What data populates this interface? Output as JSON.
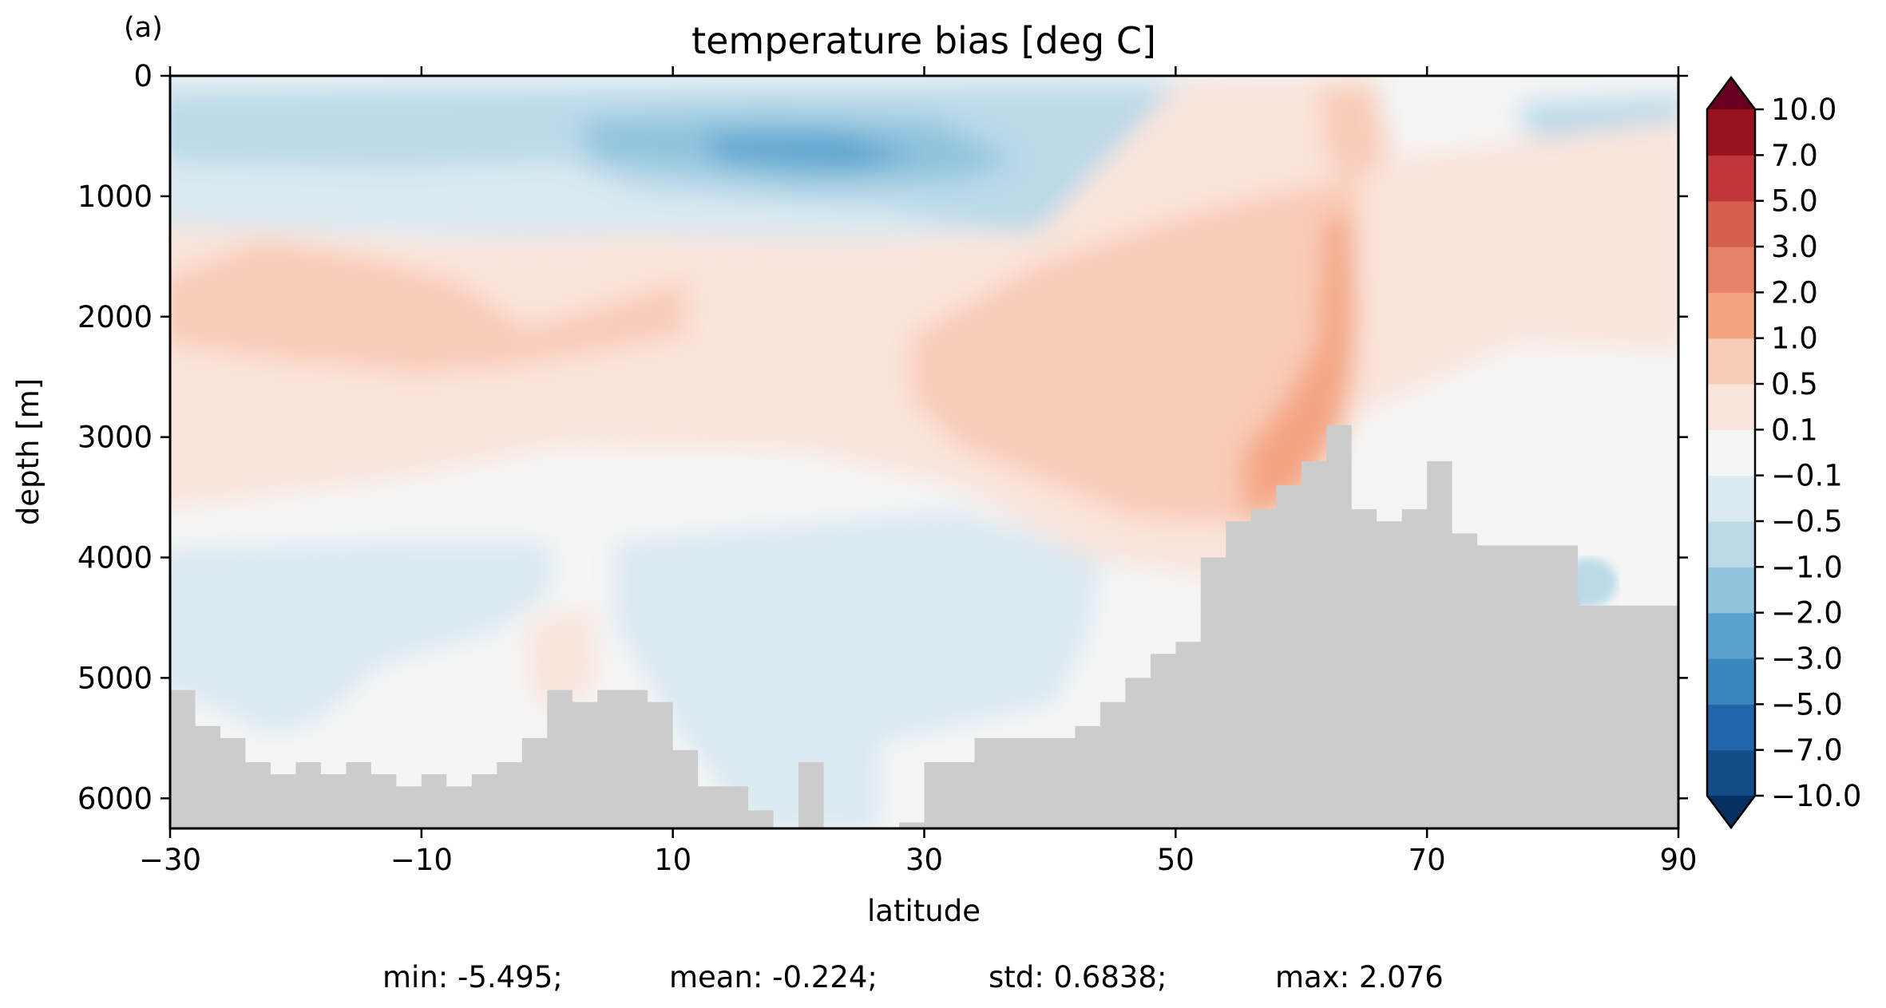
{
  "panel_label": "(a)",
  "stats_line": {
    "min": "min: -5.495;",
    "mean": "mean: -0.224;",
    "std": "std: 0.6838;",
    "max": "max: 2.076"
  },
  "chart_data": {
    "type": "heatmap",
    "title": "temperature bias [deg C]",
    "xlabel": "latitude",
    "ylabel": "depth [m]",
    "xlim": [
      -30,
      90
    ],
    "ylim": [
      6250,
      0
    ],
    "y_inverted": true,
    "x_ticks": [
      -30,
      -10,
      10,
      30,
      50,
      70,
      90
    ],
    "x_tick_labels": [
      "−30",
      "−10",
      "10",
      "30",
      "50",
      "70",
      "90"
    ],
    "y_ticks": [
      0,
      1000,
      2000,
      3000,
      4000,
      5000,
      6000
    ],
    "y_tick_labels": [
      "0",
      "1000",
      "2000",
      "3000",
      "4000",
      "5000",
      "6000"
    ],
    "grid": false,
    "land_color": "#cccccc",
    "colorbar": {
      "extend": "both",
      "levels": [
        -10,
        -7,
        -5,
        -3,
        -2,
        -1,
        -0.5,
        -0.1,
        0.1,
        0.5,
        1,
        2,
        3,
        5,
        7,
        10
      ],
      "tick_labels": [
        "10.0",
        "7.0",
        "5.0",
        "3.0",
        "2.0",
        "1.0",
        "0.5",
        "0.1",
        "−0.1",
        "−0.5",
        "−1.0",
        "−2.0",
        "−3.0",
        "−5.0",
        "−7.0",
        "−10.0"
      ],
      "colors_bottom_to_top": [
        "#053061",
        "#134c87",
        "#2166ac",
        "#3a87bd",
        "#5ba3cf",
        "#92c5de",
        "#bad9e9",
        "#dae9f2",
        "#f4f5f5",
        "#fae5dc",
        "#f9ccb8",
        "#f4a582",
        "#e58267",
        "#d6604d",
        "#c03639",
        "#99131e",
        "#67001f"
      ]
    },
    "bias_regions": [
      {
        "level": "-0.5 to -0.1",
        "lat_range": [
          -30,
          90
        ],
        "depth_range": [
          0,
          1500
        ]
      },
      {
        "level": "-2.0 to -1.0",
        "lat_range": [
          3,
          32
        ],
        "depth_range": [
          300,
          900
        ]
      },
      {
        "level": "-3.0 to -2.0",
        "lat_range": [
          13,
          29
        ],
        "depth_range": [
          500,
          750
        ]
      },
      {
        "level": "0.5 to 1.0",
        "lat_range": [
          -30,
          10
        ],
        "depth_range": [
          1700,
          2600
        ]
      },
      {
        "level": "0.5 to 1.0",
        "lat_range": [
          29,
          62
        ],
        "depth_range": [
          1400,
          3500
        ]
      },
      {
        "level": "1.0 to 2.0",
        "lat_range": [
          54,
          64
        ],
        "depth_range": [
          1000,
          3800
        ]
      },
      {
        "level": "0.1 to 0.5",
        "lat_range": [
          -30,
          72
        ],
        "depth_range": [
          1300,
          3800
        ]
      },
      {
        "level": "-0.5 to -0.1",
        "lat_range": [
          -30,
          43
        ],
        "depth_range": [
          3900,
          6200
        ]
      },
      {
        "level": "-5.0 to -3.0",
        "lat_range": [
          81,
          82
        ],
        "depth_range": [
          4100,
          4500
        ]
      }
    ],
    "bathymetry_profile": {
      "latitude": [
        -30,
        -28,
        -26,
        -24,
        -22,
        -20,
        -18,
        -16,
        -14,
        -12,
        -10,
        -8,
        -6,
        -4,
        -2,
        0,
        2,
        4,
        6,
        8,
        10,
        12,
        14,
        16,
        18,
        20,
        22,
        24,
        26,
        28,
        30,
        32,
        34,
        36,
        38,
        40,
        42,
        44,
        46,
        48,
        50,
        52,
        54,
        56,
        58,
        60,
        62,
        64,
        66,
        68,
        70,
        72,
        74,
        76,
        78,
        80,
        82,
        84,
        86,
        88,
        90
      ],
      "floor_depth": [
        5100,
        5400,
        5500,
        5700,
        5800,
        5700,
        5800,
        5700,
        5800,
        5900,
        5800,
        5900,
        5800,
        5700,
        5500,
        5100,
        5200,
        5100,
        5100,
        5200,
        5600,
        5900,
        5900,
        6100,
        6300,
        5700,
        6300,
        6300,
        6300,
        6200,
        5700,
        5700,
        5500,
        5500,
        5500,
        5500,
        5400,
        5200,
        5000,
        4800,
        4700,
        4000,
        3700,
        3600,
        3400,
        3200,
        2900,
        3600,
        3700,
        3600,
        3200,
        3800,
        3900,
        3900,
        3900,
        3900,
        4400,
        4400,
        4400,
        4400,
        4300
      ]
    }
  }
}
